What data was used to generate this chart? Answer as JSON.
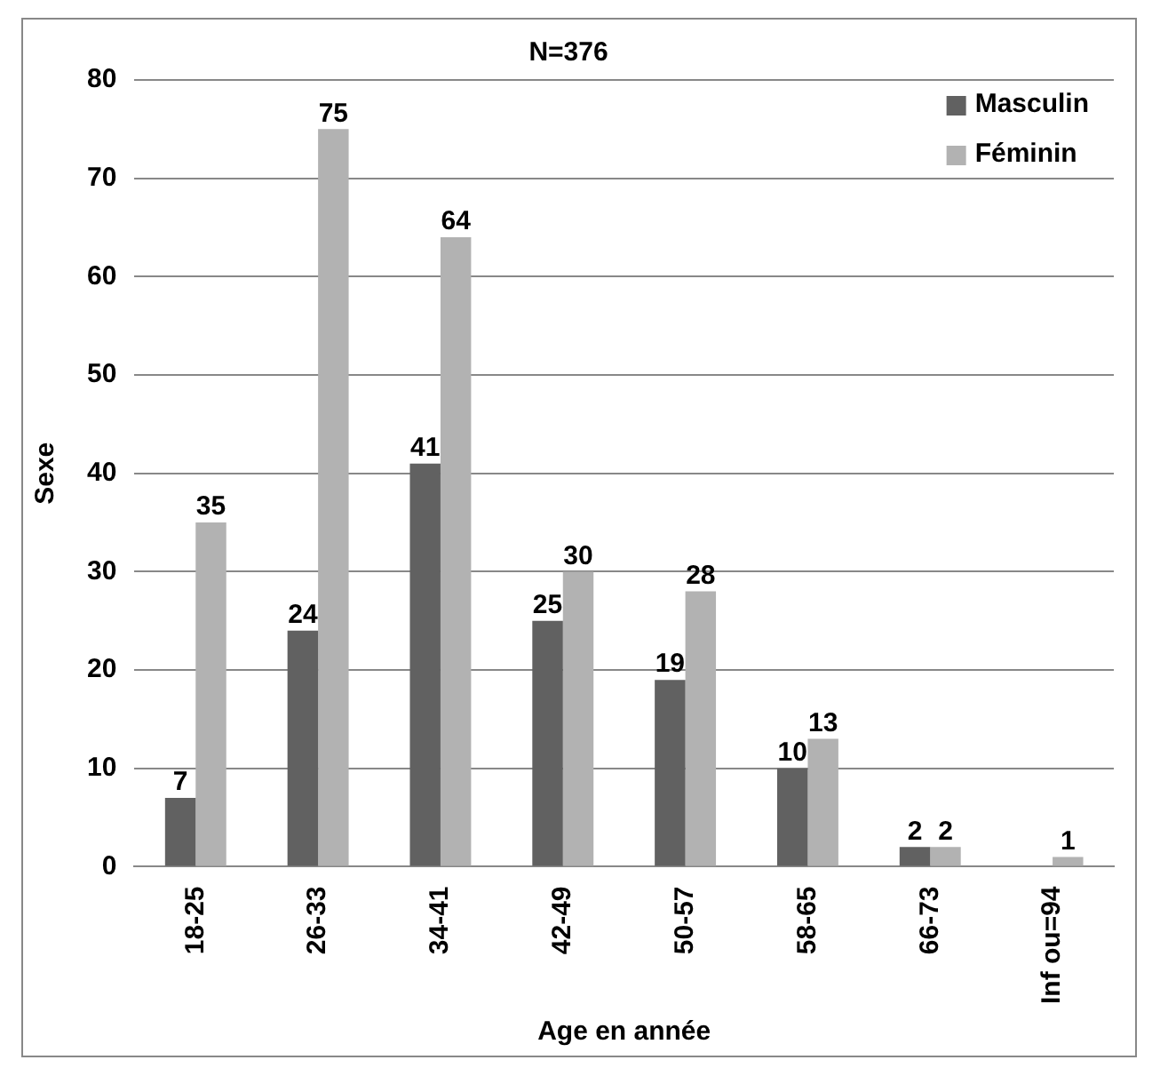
{
  "chart_data": {
    "type": "bar",
    "title": "N=376",
    "xlabel": "Age en année",
    "ylabel": "Sexe",
    "categories": [
      "18-25",
      "26-33",
      "34-41",
      "42-49",
      "50-57",
      "58-65",
      "66-73",
      "Inf ou=94"
    ],
    "series": [
      {
        "name": "Masculin",
        "color": "#616161",
        "values": [
          7,
          24,
          41,
          25,
          19,
          10,
          2,
          null
        ]
      },
      {
        "name": "Féminin",
        "color": "#b2b2b2",
        "values": [
          35,
          75,
          64,
          30,
          28,
          13,
          2,
          1
        ]
      }
    ],
    "ylim": [
      0,
      80
    ],
    "yticks": [
      0,
      10,
      20,
      30,
      40,
      50,
      60,
      70,
      80
    ],
    "grid": "y",
    "legend": "top right",
    "data_labels": true
  }
}
